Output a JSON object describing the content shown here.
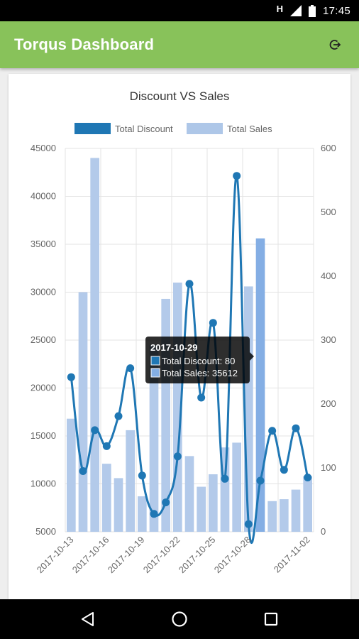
{
  "status_bar": {
    "network": "H",
    "time": "17:45"
  },
  "app_bar": {
    "title": "Torqus Dashboard",
    "action_icon": "logout-icon"
  },
  "chart_data": {
    "type": "bar-line",
    "title": "Discount VS Sales",
    "legend": [
      {
        "name": "Total Discount",
        "color": "#1f77b4"
      },
      {
        "name": "Total Sales",
        "color": "#aec7e8"
      }
    ],
    "legend_position": "top",
    "categories": [
      "2017-10-13",
      "2017-10-14",
      "2017-10-15",
      "2017-10-16",
      "2017-10-17",
      "2017-10-18",
      "2017-10-19",
      "2017-10-20",
      "2017-10-21",
      "2017-10-22",
      "2017-10-23",
      "2017-10-24",
      "2017-10-25",
      "2017-10-26",
      "2017-10-27",
      "2017-10-28",
      "2017-10-29",
      "2017-10-30",
      "2017-10-31",
      "2017-11-01",
      "2017-11-02"
    ],
    "x_tick_labels": [
      "2017-10-13",
      "2017-10-16",
      "2017-10-19",
      "2017-10-22",
      "2017-10-25",
      "2017-10-28",
      "2017-11-02"
    ],
    "x_tick_label_indices": [
      0,
      3,
      6,
      9,
      12,
      15,
      20
    ],
    "series": [
      {
        "name": "Total Sales",
        "type": "bar",
        "axis": "left",
        "values": [
          16800,
          30000,
          44000,
          12100,
          10600,
          15600,
          8700,
          24500,
          29300,
          31000,
          12900,
          9700,
          11000,
          13800,
          14300,
          30600,
          35612,
          8200,
          8400,
          9400,
          10800
        ]
      },
      {
        "name": "Total Discount",
        "type": "line",
        "axis": "right",
        "values": [
          242,
          95,
          159,
          134,
          181,
          256,
          88,
          28,
          46,
          118,
          388,
          210,
          327,
          83,
          557,
          12,
          80,
          158,
          97,
          162,
          85
        ]
      }
    ],
    "y_left": {
      "min": 5000,
      "max": 45000,
      "ticks": [
        5000,
        10000,
        15000,
        20000,
        25000,
        30000,
        35000,
        40000,
        45000
      ]
    },
    "y_right": {
      "min": 0,
      "max": 600,
      "ticks": [
        0,
        100,
        200,
        300,
        400,
        500,
        600
      ]
    },
    "grid": true,
    "highlight_index": 16,
    "tooltip": {
      "title": "2017-10-29",
      "line1": "Total Discount: 80",
      "line2": "Total Sales: 35612"
    }
  },
  "nav_bar": {
    "back": "back-icon",
    "home": "home-icon",
    "recents": "recents-icon"
  }
}
